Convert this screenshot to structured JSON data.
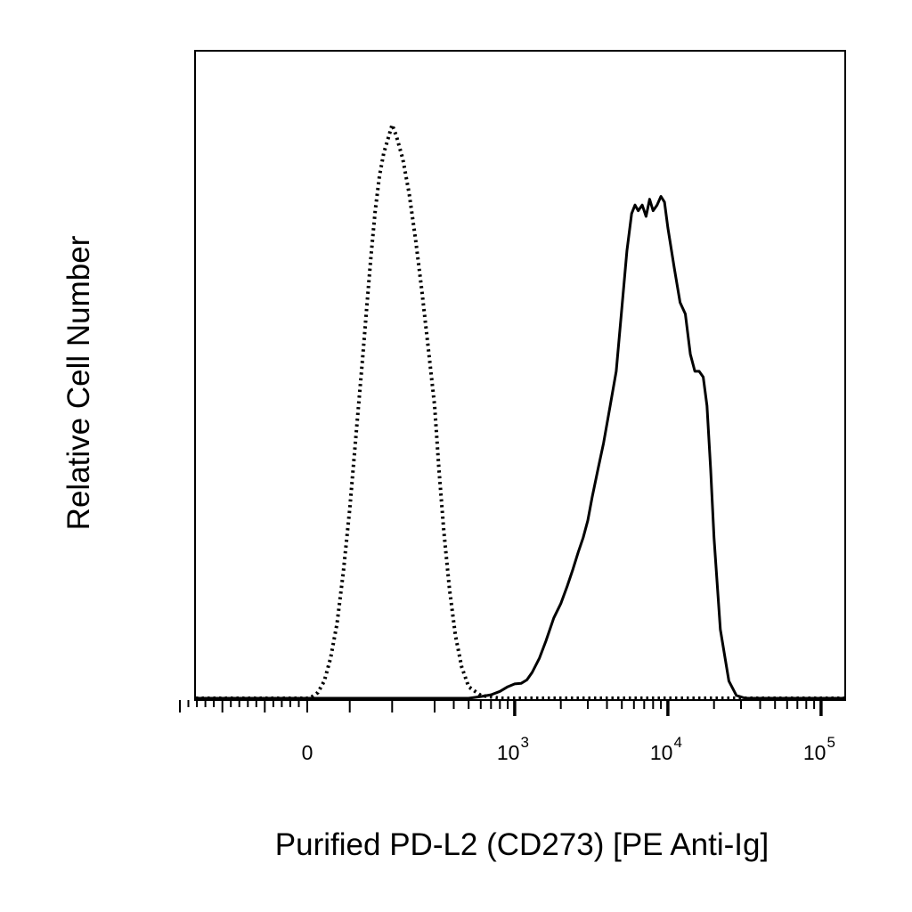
{
  "chart_data": {
    "type": "line",
    "title": "",
    "xlabel": "Purified PD-L2 (CD273) [PE Anti-Ig]",
    "ylabel": "Relative Cell Number",
    "x_scale": "biexponential",
    "xlim": [
      -300,
      200000
    ],
    "ylim": [
      0,
      100
    ],
    "grid": false,
    "legend": "none",
    "x_tick_labels": [
      {
        "value": 0,
        "base": "0",
        "exp": ""
      },
      {
        "value": 1000,
        "base": "10",
        "exp": "3"
      },
      {
        "value": 10000,
        "base": "10",
        "exp": "4"
      },
      {
        "value": 100000,
        "base": "10",
        "exp": "5"
      }
    ],
    "series": [
      {
        "style": "dotted",
        "color": "#000000",
        "x": [
          -300,
          0,
          10,
          25,
          40,
          55,
          70,
          85,
          100,
          115,
          130,
          140,
          150,
          160,
          170,
          180,
          190,
          200,
          210,
          225,
          240,
          255,
          270,
          285,
          300,
          320,
          345,
          375,
          410,
          450,
          500,
          600,
          800,
          1200,
          3000,
          20000,
          200000
        ],
        "y": [
          0,
          0,
          0.2,
          1,
          3,
          7,
          13,
          22,
          33,
          46,
          59,
          68,
          77,
          85,
          91,
          95,
          97.5,
          100,
          98,
          94,
          88,
          80,
          71,
          61,
          51,
          40,
          29,
          19,
          11,
          5.5,
          2,
          0.5,
          0,
          0,
          0,
          0,
          0
        ]
      },
      {
        "style": "solid",
        "color": "#000000",
        "x": [
          -300,
          0,
          200,
          400,
          500,
          600,
          700,
          800,
          900,
          1000,
          1100,
          1200,
          1300,
          1450,
          1600,
          1800,
          2000,
          2200,
          2400,
          2600,
          2800,
          3000,
          3200,
          3500,
          3800,
          4200,
          4600,
          5000,
          5400,
          5800,
          6100,
          6400,
          6800,
          7200,
          7600,
          8000,
          8500,
          9000,
          9500,
          10000,
          11000,
          12000,
          13000,
          14000,
          15000,
          16000,
          17000,
          18000,
          19000,
          20000,
          22000,
          25000,
          28000,
          32000,
          40000,
          60000,
          100000,
          200000
        ],
        "y": [
          0,
          0,
          0,
          0,
          0,
          0.3,
          0.6,
          1.2,
          2,
          2.5,
          2.6,
          3.2,
          4.5,
          7,
          10,
          14,
          16.5,
          19.5,
          22.5,
          25.5,
          28,
          31,
          35,
          40,
          44.5,
          51,
          57,
          68,
          78,
          84.5,
          86,
          85,
          86,
          84,
          87,
          85,
          86,
          87.5,
          86.5,
          82,
          75,
          69,
          67,
          60,
          57,
          57,
          56,
          51,
          40,
          28,
          12,
          3,
          0.5,
          0,
          0,
          0,
          0,
          0
        ]
      }
    ]
  }
}
